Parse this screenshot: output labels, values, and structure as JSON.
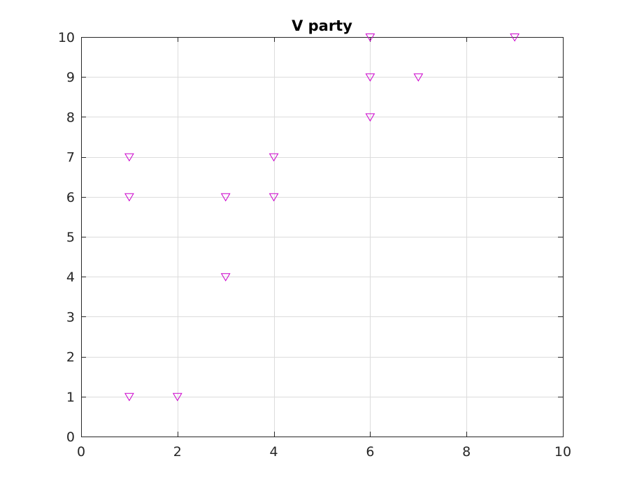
{
  "chart_data": {
    "type": "scatter",
    "title": "V party",
    "xlabel": "",
    "ylabel": "",
    "xlim": [
      0,
      10
    ],
    "ylim": [
      0,
      10
    ],
    "xticks": [
      0,
      2,
      4,
      6,
      8,
      10
    ],
    "yticks": [
      0,
      1,
      2,
      3,
      4,
      5,
      6,
      7,
      8,
      9,
      10
    ],
    "grid": true,
    "marker": "triangle-down",
    "marker_color": "#cc00cc",
    "series": [
      {
        "points": [
          {
            "x": 1,
            "y": 7
          },
          {
            "x": 1,
            "y": 6
          },
          {
            "x": 1,
            "y": 1
          },
          {
            "x": 2,
            "y": 1
          },
          {
            "x": 3,
            "y": 6
          },
          {
            "x": 3,
            "y": 4
          },
          {
            "x": 4,
            "y": 7
          },
          {
            "x": 4,
            "y": 6
          },
          {
            "x": 6,
            "y": 10
          },
          {
            "x": 6,
            "y": 9
          },
          {
            "x": 6,
            "y": 8
          },
          {
            "x": 7,
            "y": 9
          },
          {
            "x": 9,
            "y": 10
          }
        ]
      }
    ]
  }
}
